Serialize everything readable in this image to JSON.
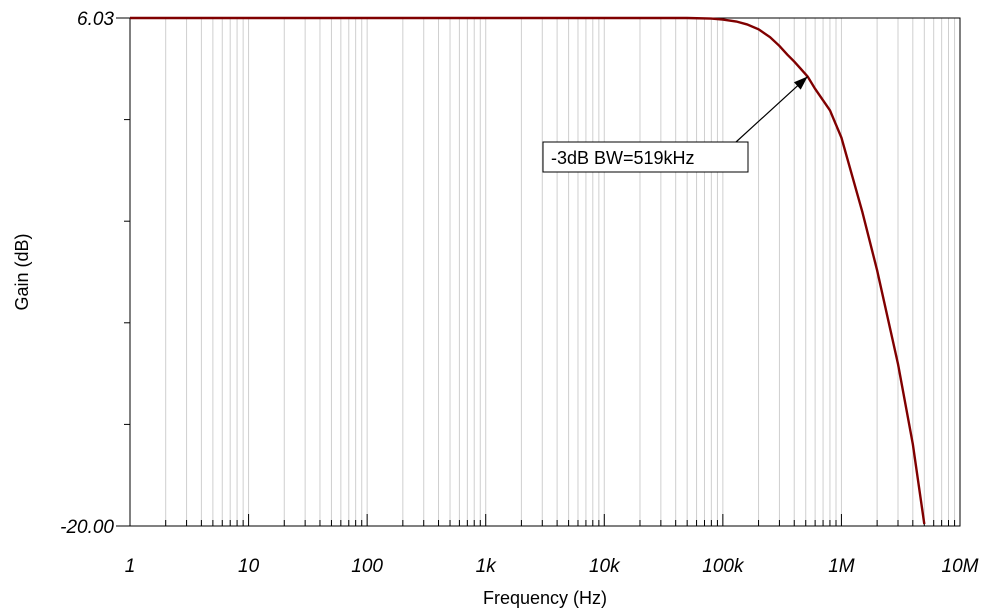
{
  "chart_data": {
    "type": "line",
    "title": "",
    "xlabel": "Frequency (Hz)",
    "ylabel": "Gain (dB)",
    "x_scale": "log",
    "xlim": [
      1,
      10000000
    ],
    "ylim": [
      -20.0,
      6.03
    ],
    "grid": "vertical-minor",
    "x_ticks": [
      {
        "value": 1,
        "label": "1"
      },
      {
        "value": 10,
        "label": "10"
      },
      {
        "value": 100,
        "label": "100"
      },
      {
        "value": 1000,
        "label": "1k"
      },
      {
        "value": 10000,
        "label": "10k"
      },
      {
        "value": 100000,
        "label": "100k"
      },
      {
        "value": 1000000,
        "label": "1M"
      },
      {
        "value": 10000000,
        "label": "10M"
      }
    ],
    "y_ticks": [
      {
        "value": 6.03,
        "label": "6.03"
      },
      {
        "value": -20.0,
        "label": "-20.00"
      }
    ],
    "series": [
      {
        "color": "#800000",
        "x": [
          1,
          10,
          100,
          1000,
          10000,
          50000,
          80000,
          100000,
          130000,
          160000,
          200000,
          250000,
          300000,
          350000,
          400000,
          450000,
          519000,
          600000,
          800000,
          1000000,
          1500000,
          2000000,
          3000000,
          4000000,
          5000000
        ],
        "y": [
          6.03,
          6.03,
          6.03,
          6.03,
          6.03,
          6.03,
          6.0,
          5.95,
          5.85,
          5.7,
          5.45,
          5.05,
          4.6,
          4.15,
          3.8,
          3.45,
          3.03,
          2.4,
          1.3,
          -0.1,
          -3.9,
          -6.9,
          -11.7,
          -15.8,
          -19.9
        ]
      }
    ],
    "annotations": [
      {
        "text": "-3dB BW=519kHz",
        "x": 519000,
        "y": 3.03
      }
    ]
  }
}
